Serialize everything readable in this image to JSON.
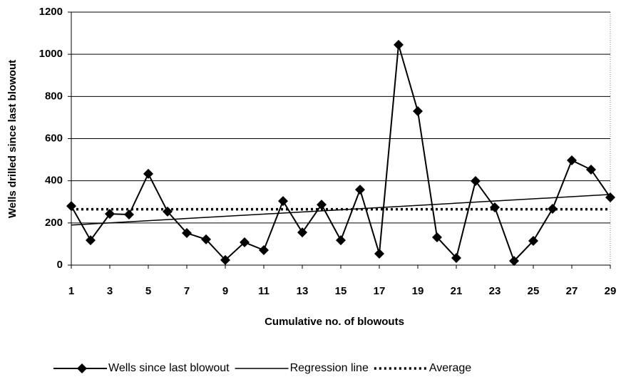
{
  "chart_data": {
    "type": "line",
    "x_label": "Cumulative no. of blowouts",
    "y_label": "Wells drilled since last blowout",
    "xlim": [
      1,
      29
    ],
    "xticks": [
      1,
      3,
      5,
      7,
      9,
      11,
      13,
      15,
      17,
      19,
      21,
      23,
      25,
      27,
      29
    ],
    "ylim": [
      0,
      1200
    ],
    "yticks": [
      0,
      200,
      400,
      600,
      800,
      1000,
      1200
    ],
    "grid": true,
    "legend": "bottom",
    "series": [
      {
        "name": "Wells since last blowout",
        "color": "#000000",
        "style": "solid",
        "marker": "diamond",
        "x": [
          1,
          2,
          3,
          4,
          5,
          6,
          7,
          8,
          9,
          10,
          11,
          12,
          13,
          14,
          15,
          16,
          17,
          18,
          19,
          20,
          21,
          22,
          23,
          24,
          25,
          26,
          27,
          28,
          29
        ],
        "values": [
          280,
          118,
          243,
          240,
          433,
          254,
          152,
          122,
          24,
          108,
          71,
          304,
          155,
          287,
          118,
          358,
          54,
          1045,
          730,
          132,
          34,
          399,
          274,
          20,
          115,
          267,
          497,
          453,
          321
        ]
      },
      {
        "name": "Regression line",
        "color": "#000000",
        "style": "solid",
        "marker": "none",
        "x": [
          1,
          29
        ],
        "values": [
          190,
          335
        ]
      },
      {
        "name": "Average",
        "color": "#000000",
        "style": "dotted",
        "marker": "none",
        "x": [
          1,
          29
        ],
        "values": [
          265,
          265
        ]
      }
    ]
  }
}
